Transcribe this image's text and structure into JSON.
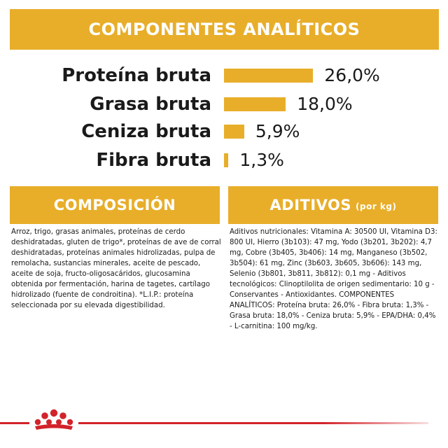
{
  "header": {
    "title": "COMPONENTES ANALÍTICOS"
  },
  "nutrients": [
    {
      "label": "Proteína bruta",
      "value": "26,0%",
      "amount": 26.0
    },
    {
      "label": "Grasa bruta",
      "value": "18,0%",
      "amount": 18.0
    },
    {
      "label": "Ceniza bruta",
      "value": "5,9%",
      "amount": 5.9
    },
    {
      "label": "Fibra bruta",
      "value": "1,3%",
      "amount": 1.3
    }
  ],
  "composicion": {
    "title": "COMPOSICIÓN",
    "text": "Arroz, trigo, grasas animales, proteínas de cerdo deshidratadas, gluten de trigo*, proteínas de ave de corral deshidratadas, proteínas animales hidrolizadas, pulpa de remolacha, sustancias minerales, aceite de pescado, aceite de soja, fructo-oligosacáridos, glucosamina obtenida por fermentación, harina de tagetes, cartílago hidrolizado (fuente de condroitina). *L.I.P.: proteína seleccionada por su elevada digestibilidad."
  },
  "aditivos": {
    "title": "ADITIVOS",
    "unit": "(por kg)",
    "text": "Aditivos nutricionales: Vitamina A: 30500 UI, Vitamina D3: 800 UI, Hierro (3b103): 47 mg, Yodo (3b201, 3b202): 4,7 mg, Cobre (3b405, 3b406): 14 mg, Manganeso (3b502, 3b504): 61 mg, Zinc (3b603, 3b605, 3b606): 143 mg, Selenio (3b801, 3b811, 3b812): 0,1 mg - Aditivos tecnológicos: Clinoptilolita de origen sedimentario: 10 g - Conservantes - Antioxidantes. COMPONENTES ANALÍTICOS: Proteína bruta: 26,0% - Fibra bruta: 1,3% - Grasa bruta: 18,0% - Ceniza bruta: 5,9% - EPA/DHA: 0,4% - L-carnitina: 100 mg/kg."
  },
  "colors": {
    "accent": "#e8ae2a",
    "brand_red": "#d2232a",
    "text": "#1a1a1a"
  },
  "logo": {
    "icon": "royal-canin-crown-icon"
  }
}
